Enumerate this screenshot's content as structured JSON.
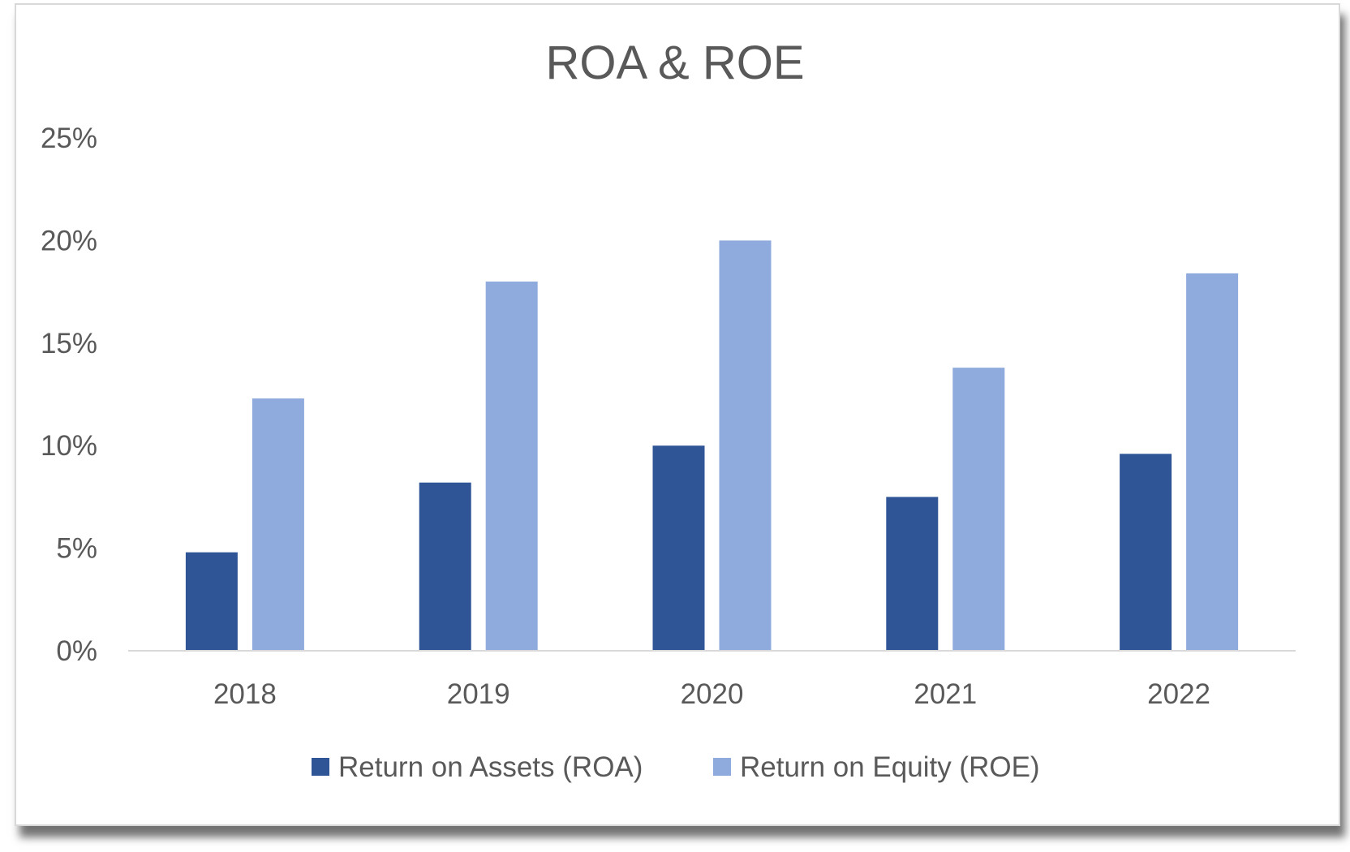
{
  "chart_data": {
    "type": "bar",
    "title": "ROA & ROE",
    "categories": [
      "2018",
      "2019",
      "2020",
      "2021",
      "2022"
    ],
    "series": [
      {
        "name": "Return on Assets (ROA)",
        "color": "#2f5597",
        "values": [
          4.8,
          8.2,
          10.0,
          7.5,
          9.6
        ]
      },
      {
        "name": "Return on Equity (ROE)",
        "color": "#8faadc",
        "values": [
          12.3,
          18.0,
          20.0,
          13.8,
          18.4
        ]
      }
    ],
    "y_ticks": [
      "0%",
      "5%",
      "10%",
      "15%",
      "20%",
      "25%"
    ],
    "ylim": [
      0,
      25
    ],
    "grid": false,
    "legend_position": "bottom"
  }
}
